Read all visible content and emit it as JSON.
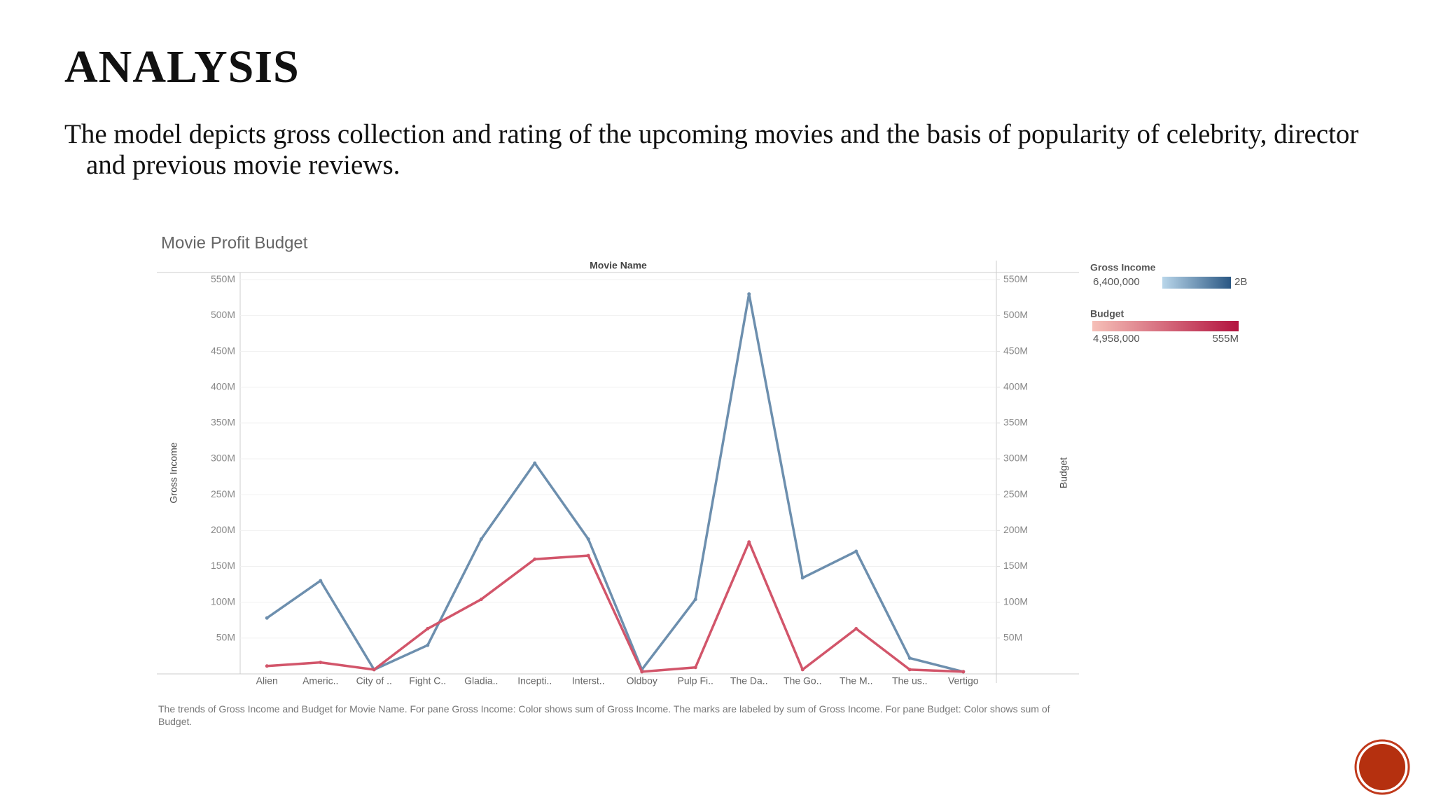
{
  "title": "ANALYSIS",
  "text": "The model depicts gross collection and rating of the upcoming movies and the basis of popularity of celebrity, director and previous movie reviews.",
  "chart_data": {
    "type": "line",
    "title": "Movie Profit Budget",
    "x_label": "Movie Name",
    "y_label": "Gross Income",
    "y2_label": "Budget",
    "categories": [
      "Alien",
      "Americ..",
      "City of ..",
      "Fight C..",
      "Gladia..",
      "Incepti..",
      "Interst..",
      "Oldboy",
      "Pulp Fi..",
      "The Da..",
      "The Go..",
      "The M..",
      "The us..",
      "Vertigo"
    ],
    "series": [
      {
        "name": "Gross Income",
        "color": "#6d8fae",
        "values": [
          78,
          130,
          6,
          40,
          188,
          294,
          188,
          6,
          104,
          530,
          134,
          171,
          22,
          3
        ]
      },
      {
        "name": "Budget",
        "color": "#d2556a",
        "axis": "y2",
        "values": [
          11,
          16,
          6,
          63,
          104,
          160,
          165,
          3,
          9,
          184,
          6,
          63,
          6,
          3
        ]
      }
    ],
    "ylim": [
      0,
      560
    ],
    "yticks": [
      {
        "value": 50,
        "label": "50M"
      },
      {
        "value": 100,
        "label": "100M"
      },
      {
        "value": 150,
        "label": "150M"
      },
      {
        "value": 200,
        "label": "200M"
      },
      {
        "value": 250,
        "label": "250M"
      },
      {
        "value": 300,
        "label": "300M"
      },
      {
        "value": 350,
        "label": "350M"
      },
      {
        "value": 400,
        "label": "400M"
      },
      {
        "value": 450,
        "label": "450M"
      },
      {
        "value": 500,
        "label": "500M"
      },
      {
        "value": 550,
        "label": "550M"
      }
    ],
    "y2lim": [
      0,
      560
    ],
    "y2ticks": [
      {
        "value": 50,
        "label": "50M"
      },
      {
        "value": 100,
        "label": "100M"
      },
      {
        "value": 150,
        "label": "150M"
      },
      {
        "value": 200,
        "label": "200M"
      },
      {
        "value": 250,
        "label": "250M"
      },
      {
        "value": 300,
        "label": "300M"
      },
      {
        "value": 350,
        "label": "350M"
      },
      {
        "value": 400,
        "label": "400M"
      },
      {
        "value": 450,
        "label": "450M"
      },
      {
        "value": 500,
        "label": "500M"
      },
      {
        "value": 550,
        "label": "550M"
      }
    ],
    "grid": true,
    "legends": [
      {
        "title": "Gross Income",
        "min_label": "6,400,000",
        "max_label": "2B",
        "colors": [
          "#b9d6ea",
          "#2a5783"
        ]
      },
      {
        "title": "Budget",
        "min_label": "4,958,000",
        "max_label": "555M",
        "colors": [
          "#f6c0b8",
          "#b3133f"
        ]
      }
    ],
    "footnote": "The trends of Gross Income and Budget for Movie Name.  For pane Gross Income:  Color shows sum of Gross Income.  The marks are labeled by sum of Gross Income.  For pane Budget:  Color shows sum of Budget."
  }
}
